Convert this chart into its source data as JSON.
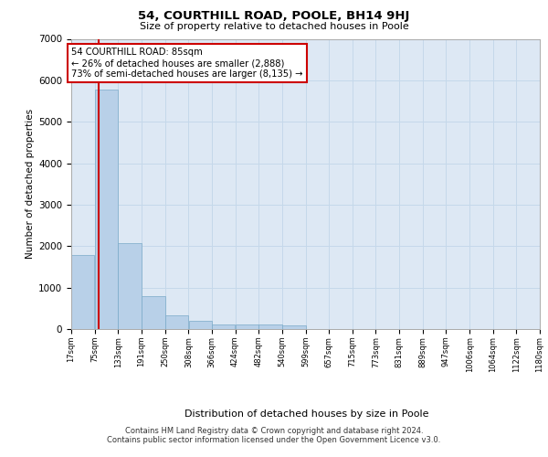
{
  "title": "54, COURTHILL ROAD, POOLE, BH14 9HJ",
  "subtitle": "Size of property relative to detached houses in Poole",
  "xlabel": "Distribution of detached houses by size in Poole",
  "ylabel": "Number of detached properties",
  "footer_line1": "Contains HM Land Registry data © Crown copyright and database right 2024.",
  "footer_line2": "Contains public sector information licensed under the Open Government Licence v3.0.",
  "annotation_title": "54 COURTHILL ROAD: 85sqm",
  "annotation_line1": "← 26% of detached houses are smaller (2,888)",
  "annotation_line2": "73% of semi-detached houses are larger (8,135) →",
  "property_size": 85,
  "bins": [
    17,
    75,
    133,
    191,
    250,
    308,
    366,
    424,
    482,
    540,
    599,
    657,
    715,
    773,
    831,
    889,
    947,
    1006,
    1064,
    1122,
    1180
  ],
  "values": [
    1780,
    5780,
    2080,
    800,
    330,
    190,
    110,
    100,
    100,
    80,
    0,
    0,
    0,
    0,
    0,
    0,
    0,
    0,
    0,
    0
  ],
  "bar_color": "#b8d0e8",
  "bar_edge_color": "#7aaac8",
  "red_line_color": "#cc0000",
  "grid_color": "#c5d8ea",
  "background_color": "#dde8f4",
  "ylim": [
    0,
    7000
  ],
  "yticks": [
    0,
    1000,
    2000,
    3000,
    4000,
    5000,
    6000,
    7000
  ]
}
